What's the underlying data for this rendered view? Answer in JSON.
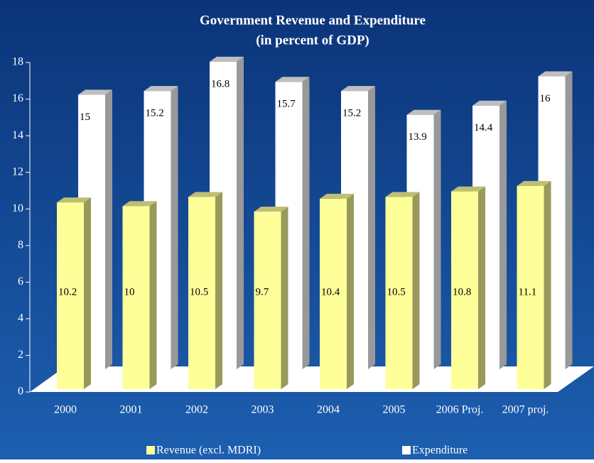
{
  "chart_data": {
    "type": "bar3d",
    "title": "Government Revenue and Expenditure",
    "subtitle": "(in percent of GDP)",
    "categories": [
      "2000",
      "2001",
      "2002",
      "2003",
      "2004",
      "2005",
      "2006 Proj.",
      "2007 proj."
    ],
    "series": [
      {
        "name": "Revenue (excl. MDRI)",
        "color": "#ffff99",
        "values": [
          10.2,
          10.0,
          10.5,
          9.7,
          10.4,
          10.5,
          10.8,
          11.1
        ]
      },
      {
        "name": "Expenditure",
        "color": "#ffffff",
        "values": [
          15.0,
          15.2,
          16.8,
          15.7,
          15.2,
          13.9,
          14.4,
          16.0
        ]
      }
    ],
    "ylim": [
      0,
      18
    ],
    "yticks": [
      0,
      2,
      4,
      6,
      8,
      10,
      12,
      14,
      16,
      18
    ]
  }
}
